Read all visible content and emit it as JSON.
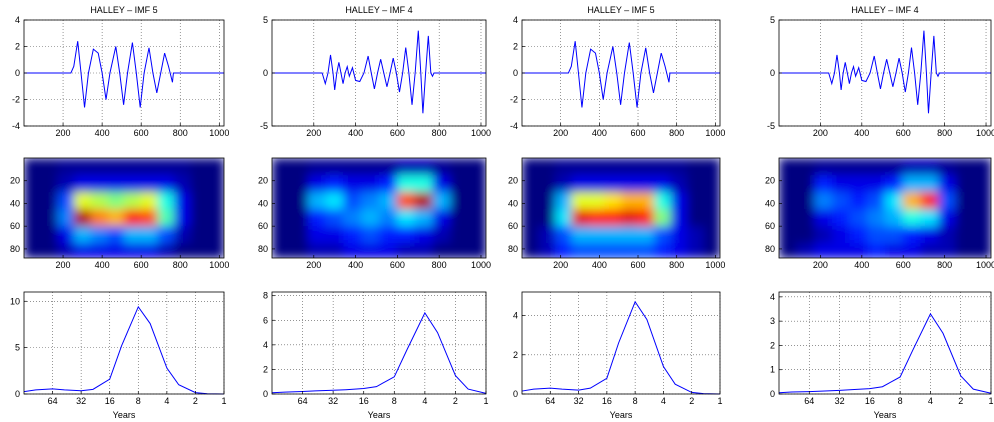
{
  "chart_data": [
    {
      "type": "line",
      "title": "HALLEY – IMF 5",
      "color": "#0000ff",
      "grid": true,
      "xlim": [
        0,
        1024
      ],
      "xticks": [
        200,
        400,
        600,
        800,
        1000
      ],
      "ylim": [
        -4,
        4
      ],
      "yticks": [
        -4,
        -2,
        0,
        2,
        4
      ],
      "x": [
        0,
        240,
        255,
        275,
        292,
        310,
        330,
        355,
        380,
        400,
        420,
        440,
        470,
        490,
        510,
        530,
        555,
        575,
        595,
        615,
        640,
        660,
        680,
        700,
        720,
        740,
        760,
        765,
        1024
      ],
      "values": [
        0,
        0,
        0.5,
        2.4,
        0,
        -2.6,
        0,
        1.8,
        1.5,
        0,
        -2.0,
        0,
        2.0,
        0,
        -2.4,
        0,
        2.3,
        0,
        -2.6,
        0,
        1.9,
        0,
        -1.5,
        0,
        1.5,
        0.5,
        -0.7,
        0,
        0
      ]
    },
    {
      "type": "line",
      "title": "HALLEY – IMF 4",
      "color": "#0000ff",
      "grid": true,
      "xlim": [
        0,
        1024
      ],
      "xticks": [
        200,
        400,
        600,
        800,
        1000
      ],
      "ylim": [
        -5,
        5
      ],
      "yticks": [
        -5,
        0,
        5
      ],
      "x": [
        0,
        240,
        255,
        268,
        280,
        292,
        300,
        310,
        320,
        330,
        340,
        350,
        360,
        370,
        385,
        400,
        420,
        440,
        460,
        475,
        490,
        505,
        520,
        535,
        550,
        565,
        580,
        595,
        610,
        625,
        640,
        655,
        670,
        685,
        700,
        712,
        722,
        735,
        748,
        760,
        768,
        775,
        1024
      ],
      "values": [
        0,
        0,
        -1,
        0,
        1.7,
        0,
        -1.6,
        0,
        1,
        0,
        -1,
        0,
        0.6,
        -0.3,
        0.5,
        -0.7,
        -0.8,
        0,
        1.6,
        0,
        -1.5,
        0,
        1.3,
        0,
        -1.3,
        0,
        1.4,
        0,
        -1.8,
        0,
        2.4,
        0,
        -3.0,
        0,
        4.0,
        0,
        -3.8,
        0,
        3.5,
        0,
        -0.3,
        0,
        0
      ]
    },
    {
      "type": "line",
      "title": "HALLEY – IMF 5",
      "color": "#0000ff",
      "grid": true,
      "xlim": [
        0,
        1024
      ],
      "xticks": [
        200,
        400,
        600,
        800,
        1000
      ],
      "ylim": [
        -4,
        4
      ],
      "yticks": [
        -4,
        -2,
        0,
        2,
        4
      ],
      "x": [
        0,
        240,
        255,
        275,
        292,
        310,
        330,
        355,
        380,
        400,
        420,
        440,
        470,
        490,
        510,
        530,
        555,
        575,
        595,
        615,
        640,
        660,
        680,
        700,
        720,
        740,
        760,
        765,
        1024
      ],
      "values": [
        0,
        0,
        0.5,
        2.4,
        0,
        -2.6,
        0,
        1.8,
        1.5,
        0,
        -2.0,
        0,
        2.0,
        0,
        -2.4,
        0,
        2.3,
        0,
        -2.6,
        0,
        1.9,
        0,
        -1.5,
        0,
        1.5,
        0.5,
        -0.7,
        0,
        0
      ]
    },
    {
      "type": "line",
      "title": "HALLEY – IMF 4",
      "color": "#0000ff",
      "grid": true,
      "xlim": [
        0,
        1024
      ],
      "xticks": [
        200,
        400,
        600,
        800,
        1000
      ],
      "ylim": [
        -5,
        5
      ],
      "yticks": [
        -5,
        0,
        5
      ],
      "x": [
        0,
        240,
        255,
        268,
        280,
        292,
        300,
        310,
        320,
        330,
        340,
        350,
        360,
        370,
        385,
        400,
        420,
        440,
        460,
        475,
        490,
        505,
        520,
        535,
        550,
        565,
        580,
        595,
        610,
        625,
        640,
        655,
        670,
        685,
        700,
        712,
        722,
        735,
        748,
        760,
        768,
        775,
        1024
      ],
      "values": [
        0,
        0,
        -1,
        0,
        1.7,
        0,
        -1.6,
        0,
        1,
        0,
        -1,
        0,
        0.6,
        -0.3,
        0.5,
        -0.7,
        -0.8,
        0,
        1.6,
        0,
        -1.5,
        0,
        1.3,
        0,
        -1.3,
        0,
        1.4,
        0,
        -1.8,
        0,
        2.4,
        0,
        -3.0,
        0,
        4.0,
        0,
        -3.8,
        0,
        3.5,
        0,
        -0.3,
        0,
        0
      ]
    },
    {
      "type": "heatmap",
      "colormap": "jet",
      "xlim": [
        0,
        1024
      ],
      "xticks": [
        200,
        400,
        600,
        800,
        1000
      ],
      "ylim": [
        88,
        0
      ],
      "yticks": [
        20,
        40,
        60,
        80
      ],
      "xbins": [
        0,
        85,
        171,
        256,
        341,
        427,
        512,
        597,
        683,
        768,
        853,
        939,
        1024
      ],
      "ybins": [
        0,
        15,
        30,
        45,
        60,
        75,
        88
      ],
      "z": [
        [
          0,
          0,
          0.02,
          0.02,
          0.02,
          0.02,
          0.02,
          0.02,
          0.02,
          0.02,
          0,
          0
        ],
        [
          0,
          0,
          0.05,
          0.1,
          0.1,
          0.1,
          0.1,
          0.1,
          0.1,
          0.05,
          0,
          0
        ],
        [
          0,
          0,
          0.2,
          0.6,
          0.55,
          0.5,
          0.55,
          0.6,
          0.4,
          0.1,
          0,
          0
        ],
        [
          0,
          0,
          0.25,
          0.95,
          0.75,
          0.7,
          0.85,
          0.8,
          0.45,
          0.1,
          0,
          0
        ],
        [
          0,
          0,
          0.1,
          0.3,
          0.25,
          0.2,
          0.3,
          0.3,
          0.2,
          0.05,
          0,
          0
        ],
        [
          0,
          0,
          0.05,
          0.1,
          0.1,
          0.1,
          0.1,
          0.1,
          0.05,
          0,
          0,
          0
        ]
      ]
    },
    {
      "type": "heatmap",
      "colormap": "jet",
      "xlim": [
        0,
        1024
      ],
      "xticks": [
        200,
        400,
        600,
        800,
        1000
      ],
      "ylim": [
        88,
        0
      ],
      "yticks": [
        20,
        40,
        60,
        80
      ],
      "xbins": [
        0,
        85,
        171,
        256,
        341,
        427,
        512,
        597,
        683,
        768,
        853,
        939,
        1024
      ],
      "ybins": [
        0,
        15,
        30,
        45,
        60,
        75,
        88
      ],
      "z": [
        [
          0,
          0,
          0.02,
          0.02,
          0.02,
          0.02,
          0.02,
          0.05,
          0.05,
          0.02,
          0,
          0
        ],
        [
          0,
          0,
          0.1,
          0.15,
          0.1,
          0.1,
          0.15,
          0.4,
          0.4,
          0.1,
          0,
          0
        ],
        [
          0,
          0,
          0.3,
          0.35,
          0.2,
          0.25,
          0.3,
          0.8,
          0.95,
          0.3,
          0,
          0
        ],
        [
          0,
          0,
          0.15,
          0.2,
          0.25,
          0.3,
          0.25,
          0.35,
          0.3,
          0.1,
          0,
          0
        ],
        [
          0,
          0,
          0.1,
          0.1,
          0.15,
          0.2,
          0.15,
          0.15,
          0.1,
          0.05,
          0,
          0
        ],
        [
          0,
          0,
          0.05,
          0.05,
          0.1,
          0.1,
          0.1,
          0.05,
          0.05,
          0,
          0,
          0
        ]
      ]
    },
    {
      "type": "heatmap",
      "colormap": "jet",
      "xlim": [
        0,
        1024
      ],
      "xticks": [
        200,
        400,
        600,
        800,
        1000
      ],
      "ylim": [
        88,
        0
      ],
      "yticks": [
        20,
        40,
        60,
        80
      ],
      "xbins": [
        0,
        85,
        171,
        256,
        341,
        427,
        512,
        597,
        683,
        768,
        853,
        939,
        1024
      ],
      "ybins": [
        0,
        15,
        30,
        45,
        60,
        75,
        88
      ],
      "z": [
        [
          0,
          0,
          0.02,
          0.02,
          0.02,
          0.02,
          0.02,
          0.02,
          0.02,
          0.02,
          0,
          0
        ],
        [
          0,
          0,
          0.05,
          0.1,
          0.1,
          0.1,
          0.1,
          0.1,
          0.1,
          0.05,
          0,
          0
        ],
        [
          0,
          0,
          0.3,
          0.6,
          0.6,
          0.65,
          0.7,
          0.7,
          0.4,
          0.1,
          0,
          0
        ],
        [
          0,
          0,
          0.35,
          0.9,
          0.85,
          0.85,
          0.9,
          0.85,
          0.5,
          0.1,
          0,
          0
        ],
        [
          0,
          0.05,
          0.2,
          0.3,
          0.3,
          0.3,
          0.3,
          0.3,
          0.2,
          0.1,
          0.05,
          0
        ],
        [
          0,
          0.05,
          0.15,
          0.2,
          0.2,
          0.2,
          0.2,
          0.2,
          0.15,
          0.1,
          0.05,
          0
        ]
      ]
    },
    {
      "type": "heatmap",
      "colormap": "jet",
      "xlim": [
        0,
        1024
      ],
      "xticks": [
        200,
        400,
        600,
        800,
        1000
      ],
      "ylim": [
        88,
        0
      ],
      "yticks": [
        20,
        40,
        60,
        80
      ],
      "xbins": [
        0,
        85,
        171,
        256,
        341,
        427,
        512,
        597,
        683,
        768,
        853,
        939,
        1024
      ],
      "ybins": [
        0,
        15,
        30,
        45,
        60,
        75,
        88
      ],
      "z": [
        [
          0,
          0,
          0.02,
          0.02,
          0.02,
          0.02,
          0.02,
          0.05,
          0.05,
          0.02,
          0,
          0
        ],
        [
          0,
          0,
          0.15,
          0.1,
          0.1,
          0.1,
          0.15,
          0.3,
          0.3,
          0.1,
          0,
          0
        ],
        [
          0,
          0,
          0.25,
          0.2,
          0.15,
          0.2,
          0.35,
          0.7,
          0.85,
          0.2,
          0,
          0
        ],
        [
          0,
          0,
          0.1,
          0.15,
          0.2,
          0.25,
          0.3,
          0.4,
          0.35,
          0.1,
          0,
          0
        ],
        [
          0,
          0,
          0.05,
          0.1,
          0.15,
          0.2,
          0.2,
          0.15,
          0.1,
          0.05,
          0,
          0
        ],
        [
          0,
          0.05,
          0.1,
          0.1,
          0.1,
          0.15,
          0.1,
          0.1,
          0.05,
          0.05,
          0,
          0
        ]
      ]
    },
    {
      "type": "line",
      "xlabel": "Years",
      "color": "#0000ff",
      "grid": true,
      "log_x": true,
      "xlim": [
        128,
        1
      ],
      "xticks": [
        64,
        32,
        16,
        8,
        4,
        2,
        1
      ],
      "ylim": [
        0,
        11
      ],
      "yticks": [
        0,
        5,
        10
      ],
      "x": [
        128,
        96,
        64,
        48,
        32,
        24,
        16,
        12,
        8,
        6,
        4,
        3,
        2,
        1.5,
        1
      ],
      "values": [
        0.25,
        0.45,
        0.55,
        0.45,
        0.35,
        0.5,
        1.6,
        5.2,
        9.4,
        7.6,
        2.8,
        1.0,
        0.15,
        0.03,
        0
      ]
    },
    {
      "type": "line",
      "xlabel": "Years",
      "color": "#0000ff",
      "grid": true,
      "log_x": true,
      "xlim": [
        128,
        1
      ],
      "xticks": [
        64,
        32,
        16,
        8,
        4,
        2,
        1
      ],
      "ylim": [
        0,
        8.3
      ],
      "yticks": [
        0,
        2,
        4,
        6,
        8
      ],
      "x": [
        128,
        96,
        64,
        48,
        32,
        24,
        16,
        12,
        8,
        6,
        4,
        3,
        2,
        1.5,
        1
      ],
      "values": [
        0.1,
        0.15,
        0.2,
        0.25,
        0.3,
        0.35,
        0.45,
        0.6,
        1.4,
        3.6,
        6.6,
        5.0,
        1.5,
        0.4,
        0.05
      ]
    },
    {
      "type": "line",
      "xlabel": "Years",
      "color": "#0000ff",
      "grid": true,
      "log_x": true,
      "xlim": [
        128,
        1
      ],
      "xticks": [
        64,
        32,
        16,
        8,
        4,
        2,
        1
      ],
      "ylim": [
        0,
        5.2
      ],
      "yticks": [
        0,
        2,
        4
      ],
      "x": [
        128,
        96,
        64,
        48,
        32,
        24,
        16,
        12,
        8,
        6,
        4,
        3,
        2,
        1.5,
        1
      ],
      "values": [
        0.15,
        0.25,
        0.3,
        0.25,
        0.2,
        0.3,
        0.8,
        2.6,
        4.7,
        3.8,
        1.4,
        0.5,
        0.08,
        0.02,
        0
      ]
    },
    {
      "type": "line",
      "xlabel": "Years",
      "color": "#0000ff",
      "grid": true,
      "log_x": true,
      "xlim": [
        128,
        1
      ],
      "xticks": [
        64,
        32,
        16,
        8,
        4,
        2,
        1
      ],
      "ylim": [
        0,
        4.2
      ],
      "yticks": [
        0,
        1,
        2,
        3,
        4
      ],
      "x": [
        128,
        96,
        64,
        48,
        32,
        24,
        16,
        12,
        8,
        6,
        4,
        3,
        2,
        1.5,
        1
      ],
      "values": [
        0.05,
        0.08,
        0.1,
        0.12,
        0.15,
        0.18,
        0.22,
        0.3,
        0.7,
        1.8,
        3.3,
        2.5,
        0.75,
        0.2,
        0.03
      ]
    }
  ]
}
